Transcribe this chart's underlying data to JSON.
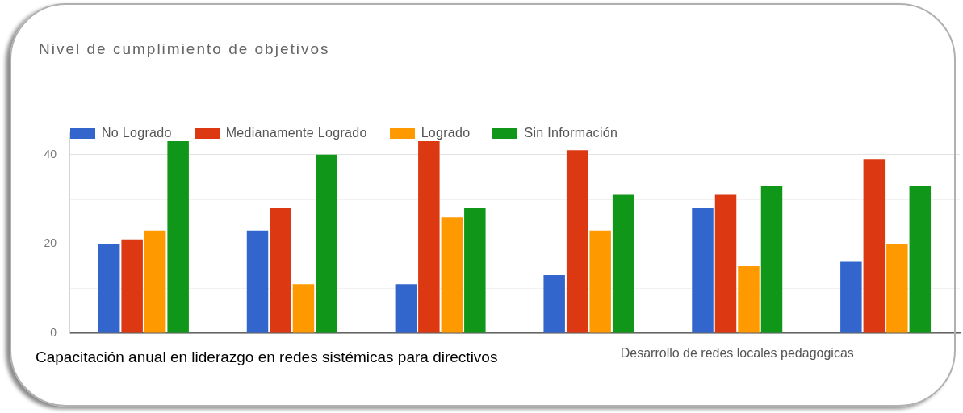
{
  "chart_data": {
    "type": "bar",
    "title": "Nivel de cumplimiento de objetivos",
    "categories": [
      null,
      null,
      null,
      null,
      "Desarrollo de redes locales pedagogicas",
      null
    ],
    "series": [
      {
        "name": "No Logrado",
        "color": "#3366cc",
        "values": [
          20,
          23,
          11,
          13,
          28,
          16
        ]
      },
      {
        "name": "Medianamente Logrado",
        "color": "#dc3912",
        "values": [
          21,
          28,
          43,
          41,
          31,
          39
        ]
      },
      {
        "name": "Logrado",
        "color": "#ff9900",
        "values": [
          23,
          11,
          26,
          23,
          15,
          20
        ]
      },
      {
        "name": "Sin Información",
        "color": "#109618",
        "values": [
          43,
          40,
          28,
          31,
          33,
          33
        ]
      }
    ],
    "ylim": [
      0,
      45
    ],
    "yticks": [
      0,
      {
        "value": 10,
        "label": null
      },
      20,
      {
        "value": 30,
        "label": null
      },
      40
    ],
    "grid": "y",
    "legend": "top left",
    "annotations": [
      "Capacitación anual en liderazgo en redes sistémicas para directivos"
    ]
  }
}
